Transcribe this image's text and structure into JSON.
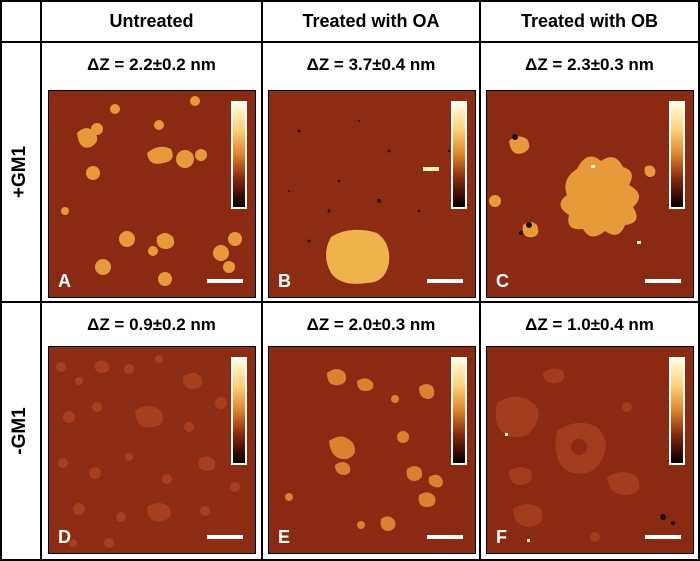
{
  "columns": {
    "untreated": "Untreated",
    "oa": "Treated with OA",
    "ob": "Treated with OB"
  },
  "rows": {
    "plus": "+GM1",
    "minus": "-GM1"
  },
  "delta_z": {
    "A": "ΔZ = 2.2±0.2 nm",
    "B": "ΔZ = 3.7±0.4 nm",
    "C": "ΔZ = 2.3±0.3 nm",
    "D": "ΔZ = 0.9±0.2 nm",
    "E": "ΔZ = 2.0±0.3 nm",
    "F": "ΔZ = 1.0±0.4 nm"
  },
  "panel_letters": {
    "A": "A",
    "B": "B",
    "C": "C",
    "D": "D",
    "E": "E",
    "F": "F"
  },
  "colors": {
    "background": "#8a2a12",
    "domain_high": "#e69a3a",
    "domain_low": "#a8401f",
    "colorbar_top": "#fffde0",
    "colorbar_bottom": "#000000"
  }
}
